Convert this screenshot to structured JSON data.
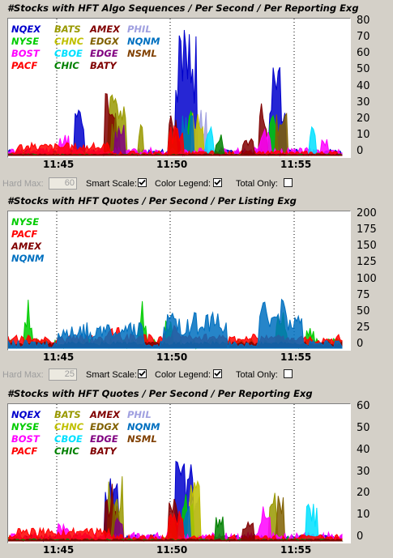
{
  "chart_data": [
    {
      "type": "area",
      "title": "#Stocks with HFT Algo Sequences / Per Second / Per Reporting Exg",
      "x_ticks": [
        "11:45",
        "11:50",
        "11:55"
      ],
      "y_ticks": [
        "80",
        "70",
        "60",
        "50",
        "40",
        "30",
        "20",
        "10",
        "0"
      ],
      "ylim": [
        0,
        80
      ],
      "grid": "vertical-dotted",
      "legend_position": "top-left",
      "series": [
        {
          "name": "NQEX",
          "color": "#0000cc"
        },
        {
          "name": "BATS",
          "color": "#999900"
        },
        {
          "name": "AMEX",
          "color": "#800000"
        },
        {
          "name": "PHIL",
          "color": "#a0a0e0"
        },
        {
          "name": "NYSE",
          "color": "#00cc00"
        },
        {
          "name": "CHNC",
          "color": "#c0c000"
        },
        {
          "name": "EDGX",
          "color": "#806000"
        },
        {
          "name": "NQNM",
          "color": "#0070c0"
        },
        {
          "name": "BOST",
          "color": "#ff00ff"
        },
        {
          "name": "CBOE",
          "color": "#00e0ff"
        },
        {
          "name": "EDGE",
          "color": "#800080"
        },
        {
          "name": "NSML",
          "color": "#804000"
        },
        {
          "name": "PACF",
          "color": "#ff0000"
        },
        {
          "name": "CHIC",
          "color": "#008000"
        },
        {
          "name": "BATY",
          "color": "#800000"
        }
      ]
    },
    {
      "type": "area",
      "title": "#Stocks with HFT Quotes / Per Second / Per Listing Exg",
      "x_ticks": [
        "11:45",
        "11:50",
        "11:55"
      ],
      "y_ticks": [
        "200",
        "175",
        "150",
        "125",
        "100",
        "75",
        "50",
        "25",
        "0"
      ],
      "ylim": [
        0,
        200
      ],
      "grid": "vertical-dotted",
      "legend_position": "top-left",
      "series": [
        {
          "name": "NYSE",
          "color": "#00cc00"
        },
        {
          "name": "PACF",
          "color": "#ff0000"
        },
        {
          "name": "AMEX",
          "color": "#800000"
        },
        {
          "name": "NQNM",
          "color": "#0070c0"
        }
      ]
    },
    {
      "type": "area",
      "title": "#Stocks with HFT Quotes / Per Second / Per Reporting Exg",
      "x_ticks": [
        "11:45",
        "11:50",
        "11:55"
      ],
      "y_ticks": [
        "60",
        "50",
        "40",
        "30",
        "20",
        "10",
        "0"
      ],
      "ylim": [
        0,
        60
      ],
      "grid": "vertical-dotted",
      "legend_position": "top-left",
      "series": [
        {
          "name": "NQEX",
          "color": "#0000cc"
        },
        {
          "name": "BATS",
          "color": "#999900"
        },
        {
          "name": "AMEX",
          "color": "#800000"
        },
        {
          "name": "PHIL",
          "color": "#a0a0e0"
        },
        {
          "name": "NYSE",
          "color": "#00cc00"
        },
        {
          "name": "CHNC",
          "color": "#c0c000"
        },
        {
          "name": "EDGX",
          "color": "#806000"
        },
        {
          "name": "NQNM",
          "color": "#0070c0"
        },
        {
          "name": "BOST",
          "color": "#ff00ff"
        },
        {
          "name": "CBOE",
          "color": "#00e0ff"
        },
        {
          "name": "EDGE",
          "color": "#800080"
        },
        {
          "name": "NSML",
          "color": "#804000"
        },
        {
          "name": "PACF",
          "color": "#ff0000"
        },
        {
          "name": "CHIC",
          "color": "#008000"
        },
        {
          "name": "BATY",
          "color": "#800000"
        }
      ]
    }
  ],
  "controls": [
    {
      "hard_max_label": "Hard Max:",
      "hard_max_value": "60",
      "smart_scale_label": "Smart Scale:",
      "smart_scale_checked": true,
      "color_legend_label": "Color Legend:",
      "color_legend_checked": true,
      "total_only_label": "Total Only:",
      "total_only_checked": false
    },
    {
      "hard_max_label": "Hard Max:",
      "hard_max_value": "25",
      "smart_scale_label": "Smart Scale:",
      "smart_scale_checked": true,
      "color_legend_label": "Color Legend:",
      "color_legend_checked": true,
      "total_only_label": "Total Only:",
      "total_only_checked": false
    }
  ]
}
